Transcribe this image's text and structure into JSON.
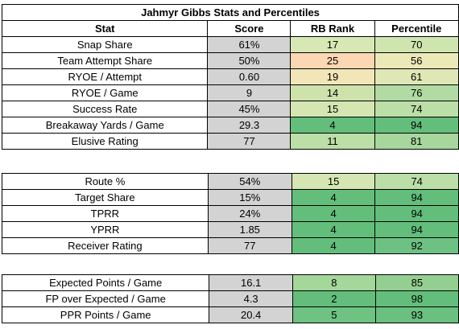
{
  "title": "Jahmyr Gibbs Stats and Percentiles",
  "headers": [
    "Stat",
    "Score",
    "RB Rank",
    "Percentile"
  ],
  "sections": [
    {
      "rows": [
        {
          "stat": "Snap Share",
          "score": "61%",
          "rank": "17",
          "pct": "70",
          "rank_color": "#d8e8b4",
          "pct_color": "#cfe5b0"
        },
        {
          "stat": "Team Attempt Share",
          "score": "50%",
          "rank": "25",
          "pct": "56",
          "rank_color": "#fbd7b3",
          "pct_color": "#ece9b9"
        },
        {
          "stat": "RYOE / Attempt",
          "score": "0.60",
          "rank": "19",
          "pct": "61",
          "rank_color": "#f2e6b8",
          "pct_color": "#dfe7b6"
        },
        {
          "stat": "RYOE / Game",
          "score": "9",
          "rank": "14",
          "pct": "76",
          "rank_color": "#cee3ac",
          "pct_color": "#b1dba3"
        },
        {
          "stat": "Success Rate",
          "score": "45%",
          "rank": "15",
          "pct": "74",
          "rank_color": "#d5e6b2",
          "pct_color": "#bcdfa8"
        },
        {
          "stat": "Breakaway Yards / Game",
          "score": "29.3",
          "rank": "4",
          "pct": "94",
          "rank_color": "#63be7b",
          "pct_color": "#63be7b"
        },
        {
          "stat": "Elusive Rating",
          "score": "77",
          "rank": "11",
          "pct": "81",
          "rank_color": "#bcdea7",
          "pct_color": "#a8d79d"
        }
      ]
    },
    {
      "rows": [
        {
          "stat": "Route %",
          "score": "54%",
          "rank": "15",
          "pct": "74",
          "rank_color": "#d5e6b2",
          "pct_color": "#bcdfa8"
        },
        {
          "stat": "Target Share",
          "score": "15%",
          "rank": "4",
          "pct": "94",
          "rank_color": "#63be7b",
          "pct_color": "#63be7b"
        },
        {
          "stat": "TPRR",
          "score": "24%",
          "rank": "4",
          "pct": "94",
          "rank_color": "#63be7b",
          "pct_color": "#63be7b"
        },
        {
          "stat": "YPRR",
          "score": "1.85",
          "rank": "4",
          "pct": "94",
          "rank_color": "#63be7b",
          "pct_color": "#63be7b"
        },
        {
          "stat": "Receiver Rating",
          "score": "77",
          "rank": "4",
          "pct": "92",
          "rank_color": "#63be7b",
          "pct_color": "#6dc182"
        }
      ]
    },
    {
      "rows": [
        {
          "stat": "Expected Points / Game",
          "score": "16.1",
          "rank": "8",
          "pct": "85",
          "rank_color": "#a4d79a",
          "pct_color": "#93cf91"
        },
        {
          "stat": "FP over Expected / Game",
          "score": "4.3",
          "rank": "2",
          "pct": "98",
          "rank_color": "#63be7b",
          "pct_color": "#63be7b"
        },
        {
          "stat": "PPR Points / Game",
          "score": "20.4",
          "rank": "5",
          "pct": "93",
          "rank_color": "#6ec282",
          "pct_color": "#69c07f"
        }
      ]
    }
  ]
}
